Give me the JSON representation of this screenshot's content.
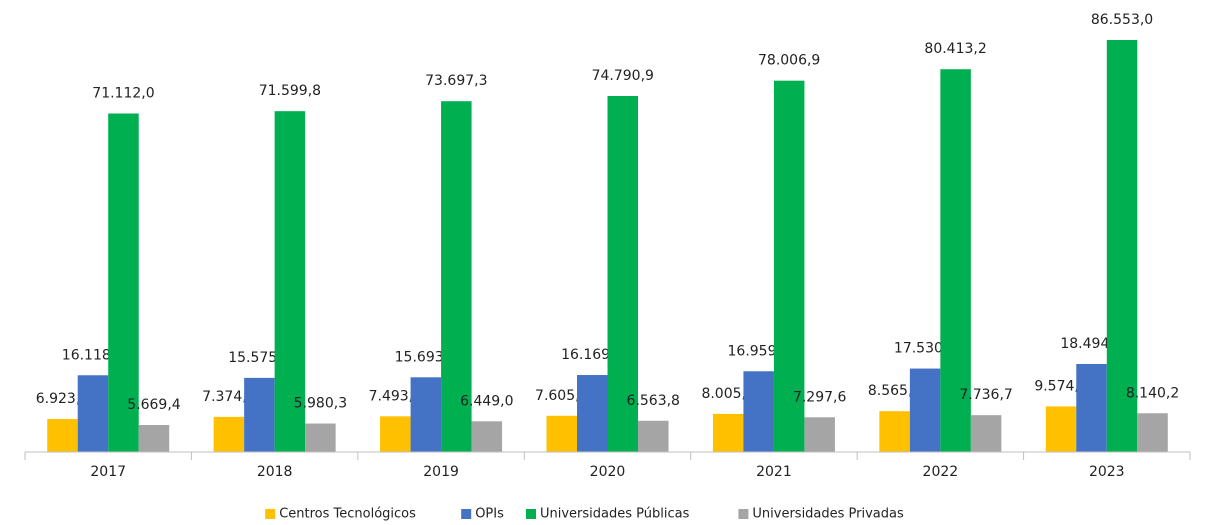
{
  "chart_data": {
    "type": "bar",
    "categories": [
      "2017",
      "2018",
      "2019",
      "2020",
      "2021",
      "2022",
      "2023"
    ],
    "series": [
      {
        "name": "Centros Tecnológicos",
        "color": "#FFC000",
        "values": [
          6923.7,
          7374.6,
          7493.2,
          7605.7,
          8005.9,
          8565.8,
          9574.2
        ],
        "value_labels": [
          "6.923,7",
          "7.374,6",
          "7.493,2",
          "7.605,7",
          "8.005,9",
          "8.565,8",
          "9.574,2"
        ]
      },
      {
        "name": "OPIs",
        "color": "#4472C4",
        "values": [
          16118.9,
          15575.1,
          15693.0,
          16169.0,
          16959.7,
          17530.3,
          18494.6
        ],
        "value_labels": [
          "16.118,9",
          "15.575,1",
          "15.693,0",
          "16.169,0",
          "16.959,7",
          "17.530,3",
          "18.494,6"
        ]
      },
      {
        "name": "Universidades Públicas",
        "color": "#00B050",
        "values": [
          71112.0,
          71599.8,
          73697.3,
          74790.9,
          78006.9,
          80413.2,
          86553.0
        ],
        "value_labels": [
          "71.112,0",
          "71.599,8",
          "73.697,3",
          "74.790,9",
          "78.006,9",
          "80.413,2",
          "86.553,0"
        ]
      },
      {
        "name": "Universidades Privadas",
        "color": "#A5A5A5",
        "values": [
          5669.4,
          5980.3,
          6449.0,
          6563.8,
          7297.6,
          7736.7,
          8140.2
        ],
        "value_labels": [
          "5.669,4",
          "5.980,3",
          "6.449,0",
          "6.563,8",
          "7.297,6",
          "7.736,7",
          "8.140,2"
        ]
      }
    ],
    "legend": "bottom"
  }
}
